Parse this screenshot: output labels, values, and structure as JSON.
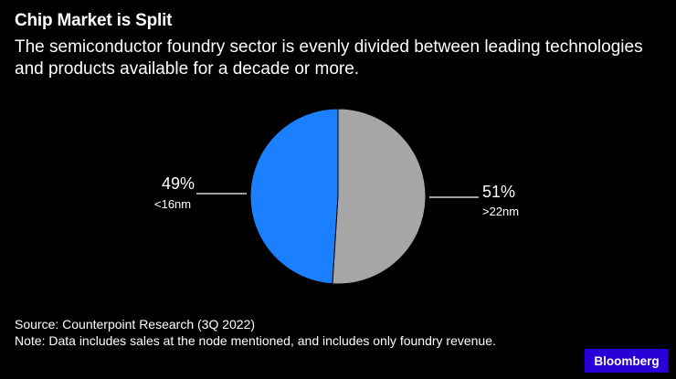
{
  "header": {
    "title": "Chip Market is Split",
    "subtitle": "The semiconductor foundry sector is evenly divided between leading technologies and products available for a decade or more."
  },
  "chart_data": {
    "type": "pie",
    "slices": [
      {
        "label": "<16nm",
        "value": 49,
        "value_label": "49%",
        "color": "#1a80ff"
      },
      {
        "label": ">22nm",
        "value": 51,
        "value_label": "51%",
        "color": "#a6a6a6"
      }
    ]
  },
  "footer": {
    "source": "Source: Counterpoint Research (3Q 2022)",
    "note": "Note: Data includes sales at the node mentioned, and includes only foundry revenue."
  },
  "brand": {
    "label": "Bloomberg"
  }
}
